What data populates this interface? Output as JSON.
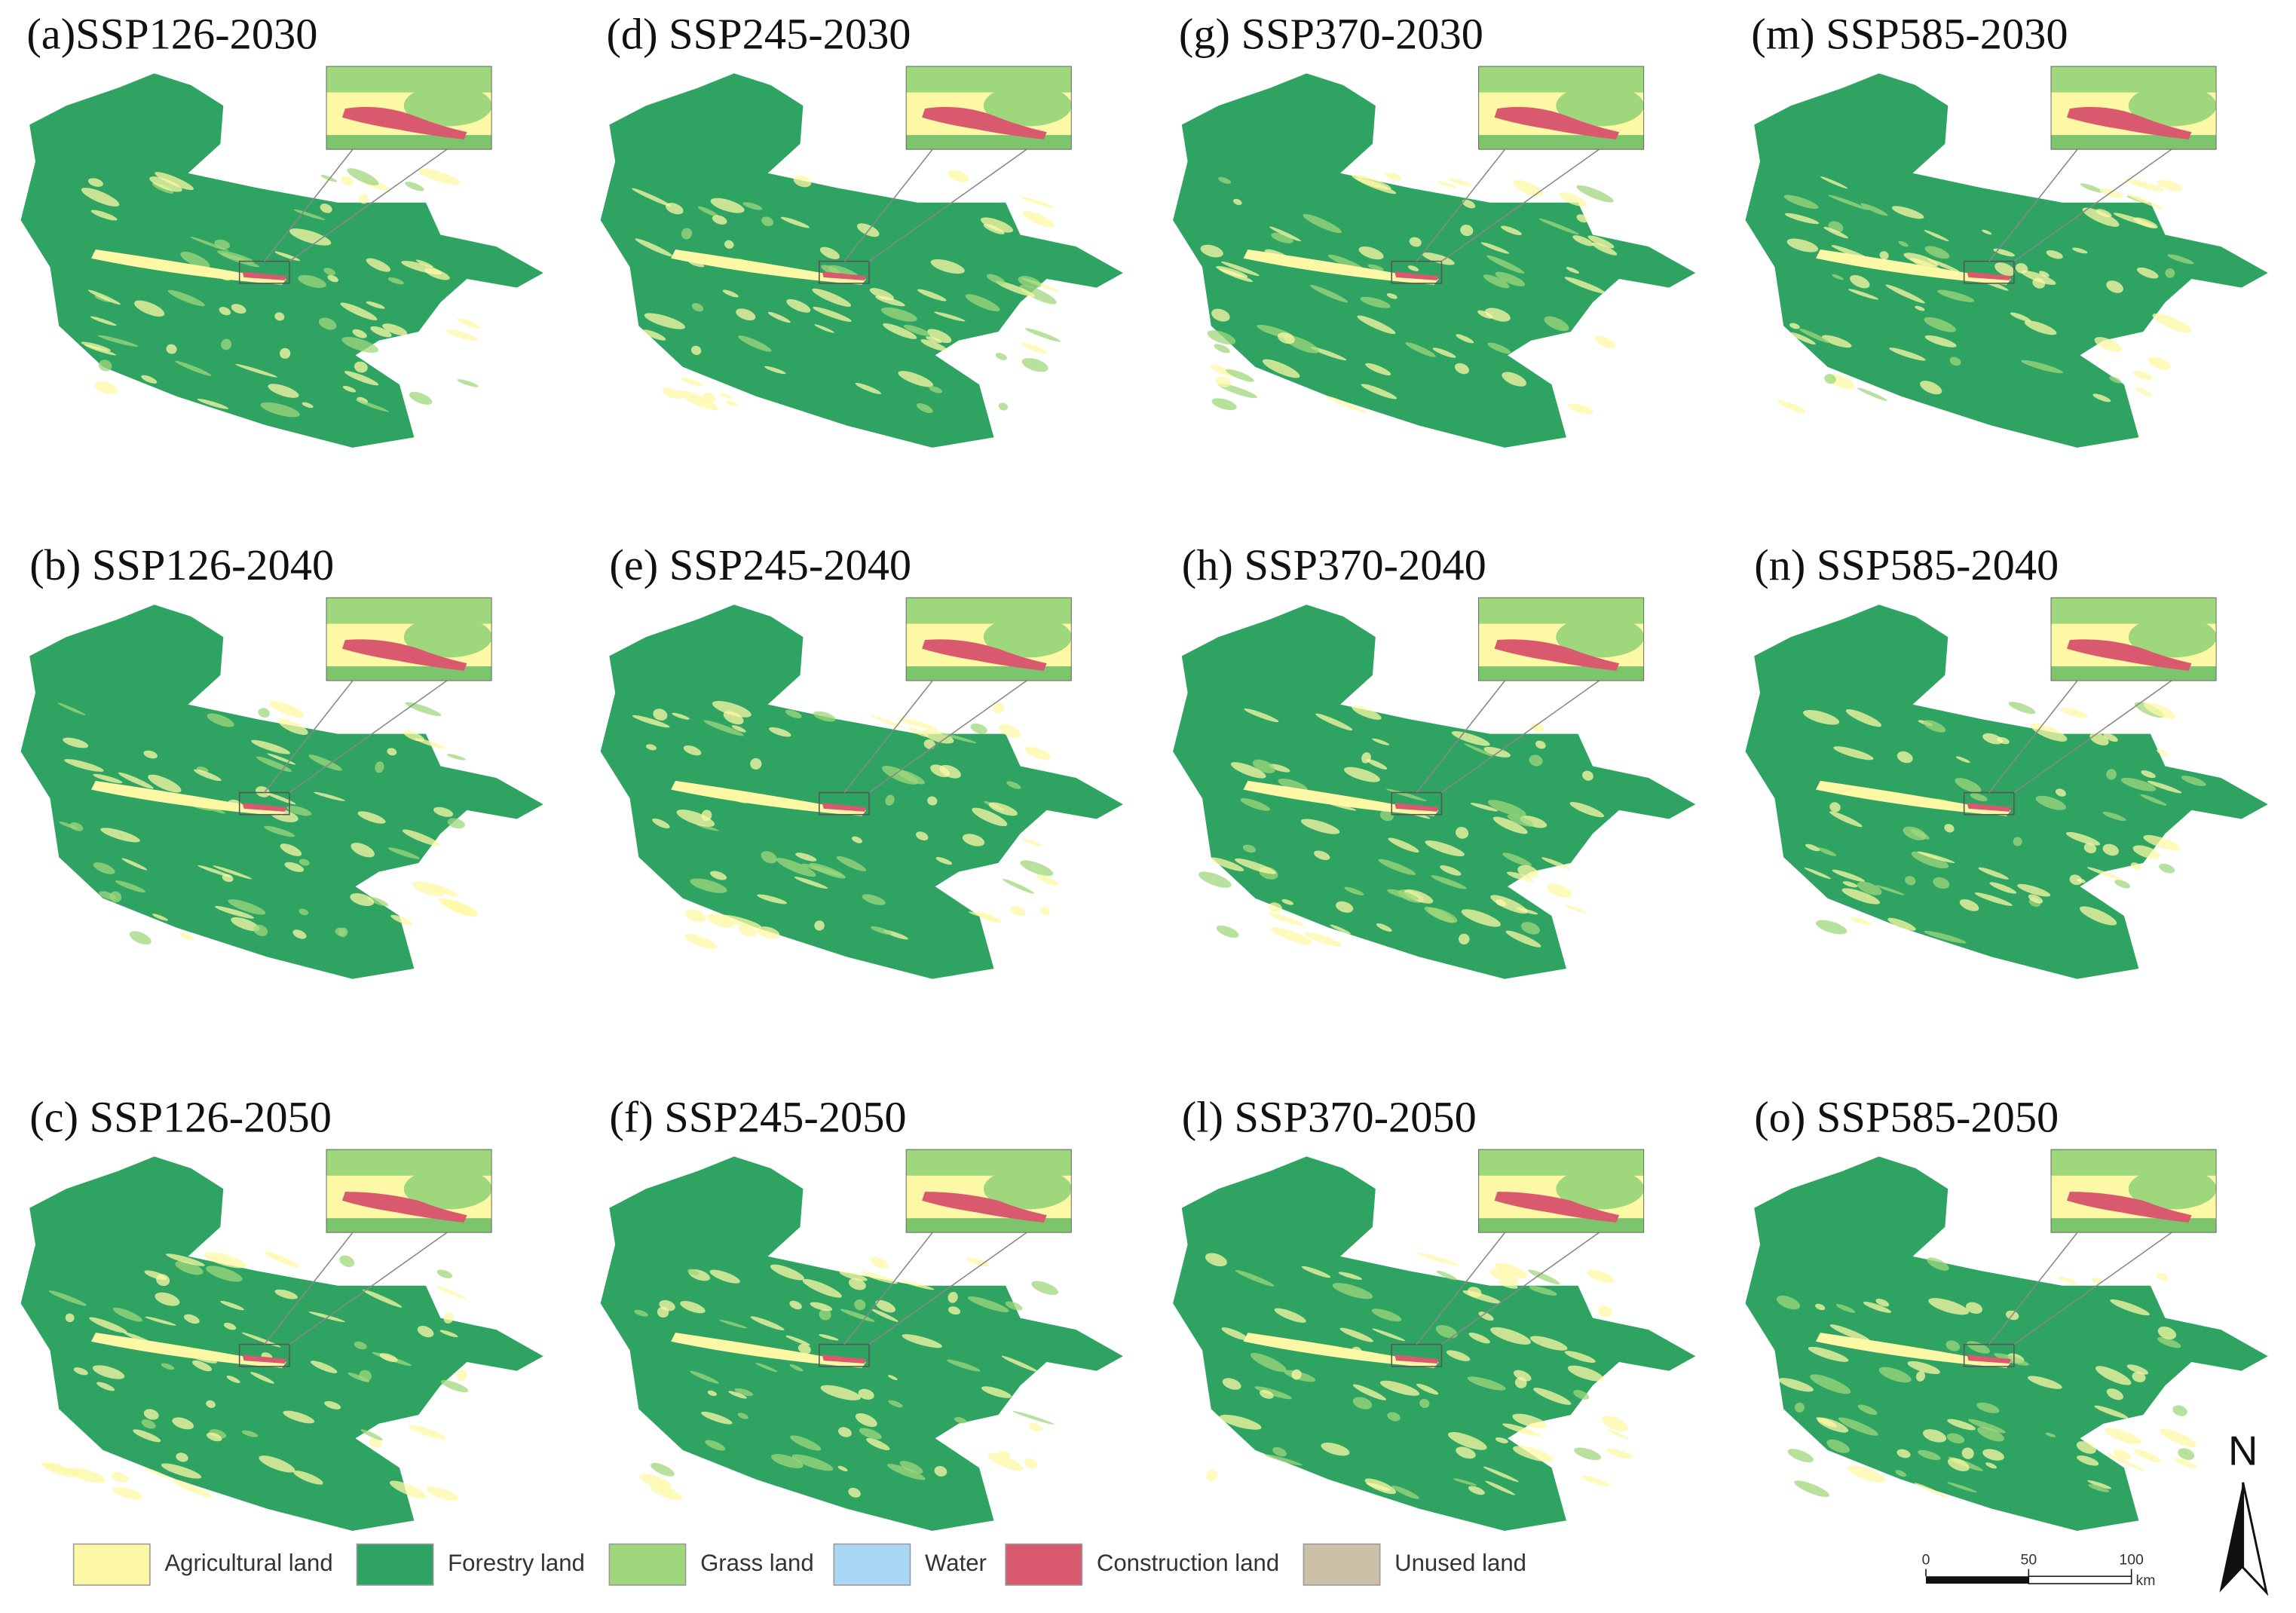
{
  "panels": [
    {
      "label": "(a)SSP126-2030"
    },
    {
      "label": "(b) SSP126-2040"
    },
    {
      "label": "(c) SSP126-2050"
    },
    {
      "label": "(d) SSP245-2030"
    },
    {
      "label": "(e) SSP245-2040"
    },
    {
      "label": "(f) SSP245-2050"
    },
    {
      "label": "(g) SSP370-2030"
    },
    {
      "label": "(h) SSP370-2040"
    },
    {
      "label": "(l) SSP370-2050"
    },
    {
      "label": "(m) SSP585-2030"
    },
    {
      "label": "(n) SSP585-2040"
    },
    {
      "label": "(o) SSP585-2050"
    }
  ],
  "legend": [
    {
      "label": "Agricultural land",
      "color": "#fdf8a6"
    },
    {
      "label": "Forestry land",
      "color": "#2fa462"
    },
    {
      "label": "Grass land",
      "color": "#9fd77c"
    },
    {
      "label": "Water",
      "color": "#a8d8f6"
    },
    {
      "label": "Construction land",
      "color": "#d9596f"
    },
    {
      "label": "Unused land",
      "color": "#ccc0a6"
    }
  ],
  "scale_bar": {
    "ticks": [
      0,
      50,
      100
    ],
    "unit": "km"
  },
  "north": "N"
}
